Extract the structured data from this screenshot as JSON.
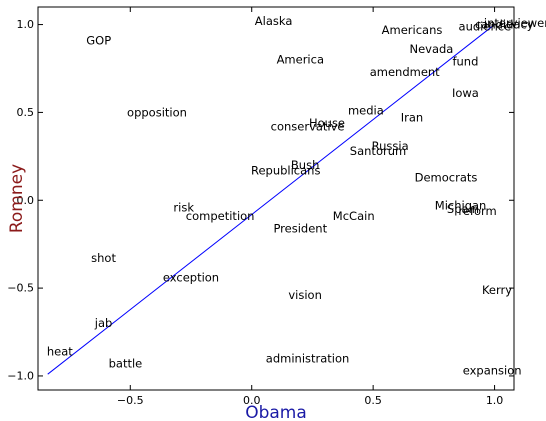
{
  "chart_data": {
    "type": "scatter",
    "title": "",
    "xlabel": "Obama",
    "ylabel": "Romney",
    "xlabel_color": "#1a1aa6",
    "ylabel_color": "#8b1a1a",
    "line_color": "#0000ff",
    "xlim": [
      -0.88,
      1.08
    ],
    "ylim": [
      -1.08,
      1.1
    ],
    "xticks": [
      -0.5,
      0.0,
      0.5,
      1.0
    ],
    "xtick_labels": [
      "−0.5",
      "0.0",
      "0.5",
      "1.0"
    ],
    "yticks": [
      -1.0,
      -0.5,
      0.0,
      0.5,
      1.0
    ],
    "ytick_labels": [
      "−1.0",
      "−0.5",
      "0.0",
      "0.5",
      "1.0"
    ],
    "grid": false,
    "diagonal": {
      "from": [
        -0.84,
        -0.99
      ],
      "to": [
        1.0,
        1.0
      ]
    },
    "points": [
      {
        "word": "Alaska",
        "x": 0.09,
        "y": 1.02
      },
      {
        "word": "GOP",
        "x": -0.63,
        "y": 0.91
      },
      {
        "word": "Americans",
        "x": 0.66,
        "y": 0.97
      },
      {
        "word": "audience",
        "x": 0.96,
        "y": 0.99
      },
      {
        "word": "candidacy",
        "x": 1.04,
        "y": 1.0
      },
      {
        "word": "interviewer",
        "x": 1.09,
        "y": 1.01
      },
      {
        "word": "America",
        "x": 0.2,
        "y": 0.8
      },
      {
        "word": "Nevada",
        "x": 0.74,
        "y": 0.86
      },
      {
        "word": "fund",
        "x": 0.88,
        "y": 0.79
      },
      {
        "word": "amendment",
        "x": 0.63,
        "y": 0.73
      },
      {
        "word": "Iowa",
        "x": 0.88,
        "y": 0.61
      },
      {
        "word": "opposition",
        "x": -0.39,
        "y": 0.5
      },
      {
        "word": "media",
        "x": 0.47,
        "y": 0.51
      },
      {
        "word": "Iran",
        "x": 0.66,
        "y": 0.47
      },
      {
        "word": "House",
        "x": 0.31,
        "y": 0.44
      },
      {
        "word": "conservative",
        "x": 0.23,
        "y": 0.42
      },
      {
        "word": "Russia",
        "x": 0.57,
        "y": 0.31
      },
      {
        "word": "Santorum",
        "x": 0.52,
        "y": 0.28
      },
      {
        "word": "Bush",
        "x": 0.22,
        "y": 0.2
      },
      {
        "word": "Republicans",
        "x": 0.14,
        "y": 0.17
      },
      {
        "word": "Democrats",
        "x": 0.8,
        "y": 0.13
      },
      {
        "word": "Michigan",
        "x": 0.86,
        "y": -0.03
      },
      {
        "word": "Spain",
        "x": 0.87,
        "y": -0.05
      },
      {
        "word": "reform",
        "x": 0.93,
        "y": -0.06
      },
      {
        "word": "risk",
        "x": -0.28,
        "y": -0.04
      },
      {
        "word": "competition",
        "x": -0.13,
        "y": -0.09
      },
      {
        "word": "McCain",
        "x": 0.42,
        "y": -0.09
      },
      {
        "word": "President",
        "x": 0.2,
        "y": -0.16
      },
      {
        "word": "shot",
        "x": -0.61,
        "y": -0.33
      },
      {
        "word": "exception",
        "x": -0.25,
        "y": -0.44
      },
      {
        "word": "Kerry",
        "x": 1.01,
        "y": -0.51
      },
      {
        "word": "vision",
        "x": 0.22,
        "y": -0.54
      },
      {
        "word": "jab",
        "x": -0.61,
        "y": -0.7
      },
      {
        "word": "heat",
        "x": -0.79,
        "y": -0.86
      },
      {
        "word": "battle",
        "x": -0.52,
        "y": -0.93
      },
      {
        "word": "administration",
        "x": 0.23,
        "y": -0.9
      },
      {
        "word": "expansion",
        "x": 0.99,
        "y": -0.97
      }
    ]
  }
}
